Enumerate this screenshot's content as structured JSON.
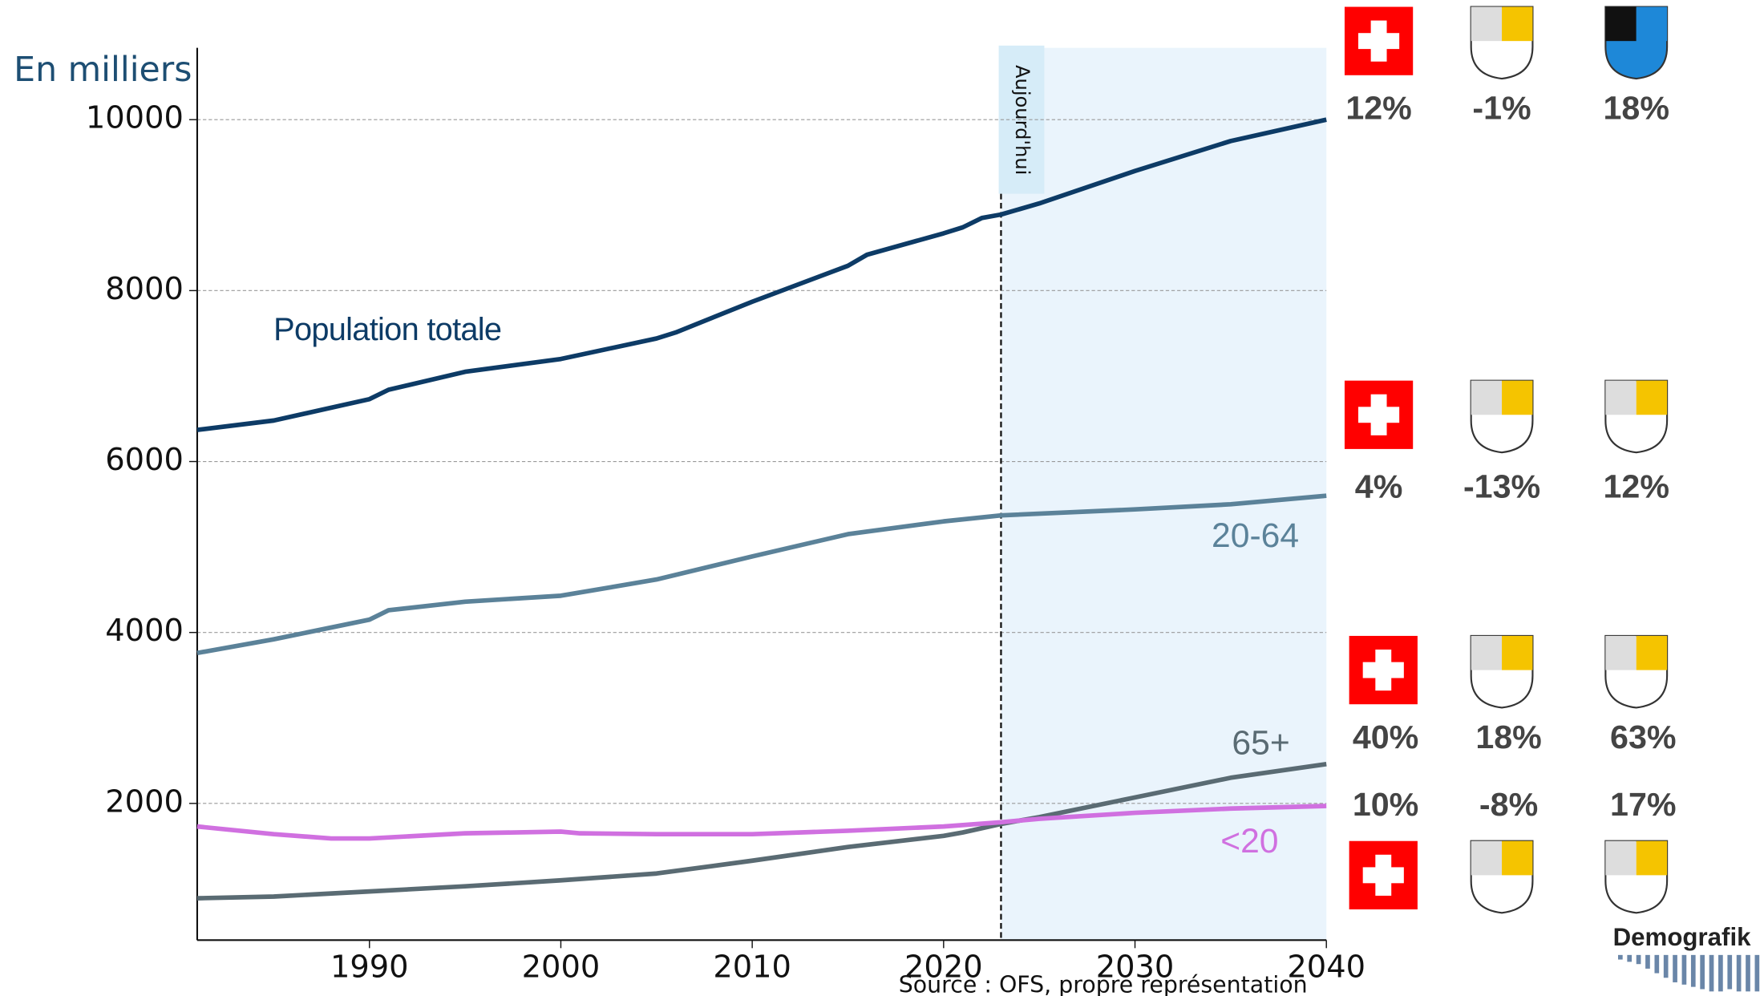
{
  "chart_data": {
    "type": "line",
    "y_label": "En milliers",
    "source": "Source : OFS, propre représentation",
    "xlim": [
      1981,
      2040
    ],
    "ylim": [
      400,
      10840
    ],
    "xticks": [
      1990,
      2000,
      2010,
      2020,
      2030,
      2040
    ],
    "yticks": [
      2000,
      4000,
      6000,
      8000,
      10000
    ],
    "grid": true,
    "today": {
      "x": 2023,
      "label": "Aujourd'hui"
    },
    "series": [
      {
        "name": "Population totale",
        "color": "#0d3b66",
        "x": [
          1981,
          1985,
          1990,
          1991,
          1995,
          2000,
          2005,
          2006,
          2010,
          2015,
          2016,
          2020,
          2021,
          2022,
          2023,
          2025,
          2030,
          2035,
          2040
        ],
        "values": [
          6370,
          6480,
          6730,
          6840,
          7050,
          7200,
          7440,
          7510,
          7870,
          8290,
          8420,
          8670,
          8740,
          8850,
          8890,
          9020,
          9400,
          9750,
          10000
        ]
      },
      {
        "name": "20-64",
        "color": "#5b8299",
        "x": [
          1981,
          1985,
          1990,
          1991,
          1995,
          2000,
          2005,
          2010,
          2015,
          2020,
          2023,
          2030,
          2035,
          2040
        ],
        "values": [
          3760,
          3920,
          4150,
          4260,
          4360,
          4430,
          4620,
          4890,
          5150,
          5300,
          5370,
          5440,
          5500,
          5600
        ]
      },
      {
        "name": "65+",
        "color": "#5a6b73",
        "x": [
          1981,
          1985,
          1990,
          1995,
          2000,
          2005,
          2010,
          2015,
          2020,
          2021,
          2023,
          2025,
          2030,
          2035,
          2040
        ],
        "values": [
          890,
          910,
          970,
          1030,
          1100,
          1180,
          1330,
          1490,
          1620,
          1660,
          1760,
          1840,
          2070,
          2300,
          2460
        ]
      },
      {
        "name": "<20",
        "color": "#d070e0",
        "x": [
          1981,
          1985,
          1988,
          1990,
          1995,
          2000,
          2001,
          2005,
          2010,
          2015,
          2020,
          2023,
          2025,
          2030,
          2035,
          2040
        ],
        "values": [
          1730,
          1640,
          1590,
          1590,
          1650,
          1670,
          1650,
          1640,
          1640,
          1680,
          1730,
          1780,
          1820,
          1890,
          1940,
          1970
        ]
      }
    ]
  },
  "panel": [
    [
      "12%",
      "-1%",
      "18%"
    ],
    [
      "4%",
      "-13%",
      "12%"
    ],
    [
      "40%",
      "18%",
      "63%"
    ],
    [
      "10%",
      "-8%",
      "17%"
    ]
  ],
  "logo": "Demografik"
}
